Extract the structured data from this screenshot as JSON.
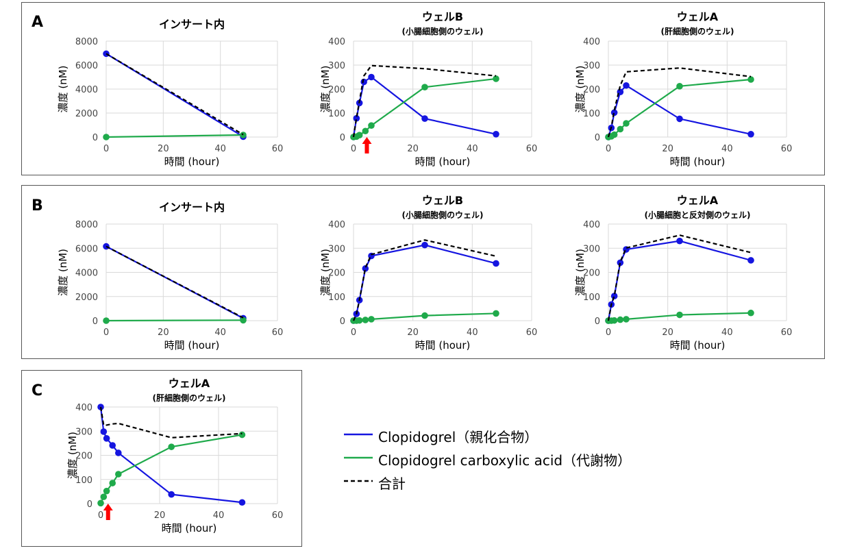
{
  "panels": [
    {
      "letter": "A"
    },
    {
      "letter": "B"
    },
    {
      "letter": "C"
    }
  ],
  "legend": [
    {
      "label": "Clopidogrel（親化合物）",
      "color": "#1515e0",
      "style": "solid"
    },
    {
      "label": "Clopidogrel carboxylic acid（代謝物）",
      "color": "#1faa4b",
      "style": "solid"
    },
    {
      "label": "合計",
      "color": "#000000",
      "style": "dashed"
    }
  ],
  "chart_data": [
    {
      "type": "line",
      "title": "インサート内",
      "subtitle": "",
      "xlabel": "時間 (hour)",
      "ylabel": "濃度 (nM)",
      "xlim": [
        0,
        60
      ],
      "ylim": [
        0,
        8000
      ],
      "xticks": [
        0,
        20,
        40,
        60
      ],
      "yticks": [
        0,
        2000,
        4000,
        6000,
        8000
      ],
      "grid": true,
      "series": [
        {
          "name": "Clopidogrel（親化合物）",
          "color": "#1515e0",
          "x": [
            0,
            48
          ],
          "y": [
            6950,
            30
          ]
        },
        {
          "name": "Clopidogrel carboxylic acid（代謝物）",
          "color": "#1faa4b",
          "x": [
            0,
            48
          ],
          "y": [
            0,
            170
          ]
        },
        {
          "name": "合計",
          "color": "#000000",
          "dashed": true,
          "x": [
            0,
            48
          ],
          "y": [
            6950,
            200
          ]
        }
      ],
      "annotations": []
    },
    {
      "type": "line",
      "title": "ウェルB",
      "subtitle": "(小腸細胞側のウェル)",
      "xlabel": "時間 (hour)",
      "ylabel": "濃度 (nM)",
      "xlim": [
        0,
        60
      ],
      "ylim": [
        0,
        400
      ],
      "xticks": [
        0,
        20,
        40,
        60
      ],
      "yticks": [
        0,
        100,
        200,
        300,
        400
      ],
      "grid": true,
      "series": [
        {
          "name": "Clopidogrel（親化合物）",
          "color": "#1515e0",
          "x": [
            0,
            1,
            2,
            3.5,
            6,
            24,
            48
          ],
          "y": [
            0,
            78,
            142,
            230,
            250,
            77,
            12
          ]
        },
        {
          "name": "Clopidogrel carboxylic acid（代謝物）",
          "color": "#1faa4b",
          "x": [
            0,
            1,
            2,
            4,
            6,
            24,
            48
          ],
          "y": [
            0,
            2,
            8,
            25,
            48,
            208,
            243
          ]
        },
        {
          "name": "合計",
          "color": "#000000",
          "dashed": true,
          "x": [
            0,
            1,
            2,
            3.5,
            6,
            24,
            48
          ],
          "y": [
            0,
            80,
            150,
            255,
            298,
            285,
            255
          ]
        }
      ],
      "annotations": [
        {
          "type": "arrow",
          "x": 4.5,
          "color": "#ff0000"
        }
      ]
    },
    {
      "type": "line",
      "title": "ウェルA",
      "subtitle": "(肝細胞側のウェル)",
      "xlabel": "時間 (hour)",
      "ylabel": "濃度 (nM)",
      "xlim": [
        0,
        60
      ],
      "ylim": [
        0,
        400
      ],
      "xticks": [
        0,
        20,
        40,
        60
      ],
      "yticks": [
        0,
        100,
        200,
        300,
        400
      ],
      "grid": true,
      "series": [
        {
          "name": "Clopidogrel（親化合物）",
          "color": "#1515e0",
          "x": [
            0,
            1,
            2,
            4,
            6,
            24,
            48
          ],
          "y": [
            0,
            38,
            102,
            188,
            215,
            76,
            12
          ]
        },
        {
          "name": "Clopidogrel carboxylic acid（代謝物）",
          "color": "#1faa4b",
          "x": [
            0,
            1,
            2,
            4,
            6,
            24,
            48
          ],
          "y": [
            0,
            3,
            10,
            33,
            57,
            212,
            240
          ]
        },
        {
          "name": "合計",
          "color": "#000000",
          "dashed": true,
          "x": [
            0,
            1,
            2,
            4,
            6,
            24,
            48
          ],
          "y": [
            0,
            42,
            112,
            215,
            272,
            288,
            252
          ]
        }
      ],
      "annotations": []
    },
    {
      "type": "line",
      "title": "インサート内",
      "subtitle": "",
      "xlabel": "時間 (hour)",
      "ylabel": "濃度 (nM)",
      "xlim": [
        0,
        60
      ],
      "ylim": [
        0,
        8000
      ],
      "xticks": [
        0,
        20,
        40,
        60
      ],
      "yticks": [
        0,
        2000,
        4000,
        6000,
        8000
      ],
      "grid": true,
      "series": [
        {
          "name": "Clopidogrel（親化合物）",
          "color": "#1515e0",
          "x": [
            0,
            48
          ],
          "y": [
            6150,
            200
          ]
        },
        {
          "name": "Clopidogrel carboxylic acid（代謝物）",
          "color": "#1faa4b",
          "x": [
            0,
            48
          ],
          "y": [
            0,
            40
          ]
        },
        {
          "name": "合計",
          "color": "#000000",
          "dashed": true,
          "x": [
            0,
            48
          ],
          "y": [
            6150,
            240
          ]
        }
      ],
      "annotations": []
    },
    {
      "type": "line",
      "title": "ウェルB",
      "subtitle": "(小腸細胞側のウェル)",
      "xlabel": "時間 (hour)",
      "ylabel": "濃度 (nM)",
      "xlim": [
        0,
        60
      ],
      "ylim": [
        0,
        400
      ],
      "xticks": [
        0,
        20,
        40,
        60
      ],
      "yticks": [
        0,
        100,
        200,
        300,
        400
      ],
      "grid": true,
      "series": [
        {
          "name": "Clopidogrel（親化合物）",
          "color": "#1515e0",
          "x": [
            0,
            1,
            2,
            4,
            6,
            24,
            48
          ],
          "y": [
            0,
            28,
            85,
            216,
            268,
            313,
            237
          ]
        },
        {
          "name": "Clopidogrel carboxylic acid（代謝物）",
          "color": "#1faa4b",
          "x": [
            0,
            1,
            2,
            4,
            6,
            24,
            48
          ],
          "y": [
            0,
            0,
            1,
            3,
            6,
            21,
            30
          ]
        },
        {
          "name": "合計",
          "color": "#000000",
          "dashed": true,
          "x": [
            0,
            1,
            2,
            4,
            6,
            24,
            48
          ],
          "y": [
            0,
            28,
            86,
            219,
            274,
            334,
            267
          ]
        }
      ],
      "annotations": []
    },
    {
      "type": "line",
      "title": "ウェルA",
      "subtitle": "(小腸細胞と反対側のウェル)",
      "xlabel": "時間 (hour)",
      "ylabel": "濃度 (nM)",
      "xlim": [
        0,
        60
      ],
      "ylim": [
        0,
        400
      ],
      "xticks": [
        0,
        20,
        40,
        60
      ],
      "yticks": [
        0,
        100,
        200,
        300,
        400
      ],
      "grid": true,
      "series": [
        {
          "name": "Clopidogrel（親化合物）",
          "color": "#1515e0",
          "x": [
            0,
            1,
            2,
            4,
            6,
            24,
            48
          ],
          "y": [
            0,
            67,
            102,
            240,
            295,
            330,
            250
          ]
        },
        {
          "name": "Clopidogrel carboxylic acid（代謝物）",
          "color": "#1faa4b",
          "x": [
            0,
            1,
            2,
            4,
            6,
            24,
            48
          ],
          "y": [
            0,
            0,
            1,
            4,
            6,
            24,
            32
          ]
        },
        {
          "name": "合計",
          "color": "#000000",
          "dashed": true,
          "x": [
            0,
            1,
            2,
            4,
            6,
            24,
            48
          ],
          "y": [
            0,
            67,
            103,
            244,
            301,
            354,
            282
          ]
        }
      ],
      "annotations": []
    },
    {
      "type": "line",
      "title": "ウェルA",
      "subtitle": "(肝細胞側のウェル)",
      "xlabel": "時間 (hour)",
      "ylabel": "濃度 (nM)",
      "xlim": [
        0,
        60
      ],
      "ylim": [
        0,
        400
      ],
      "xticks": [
        0,
        20,
        40,
        60
      ],
      "yticks": [
        0,
        100,
        200,
        300,
        400
      ],
      "grid": true,
      "series": [
        {
          "name": "Clopidogrel（親化合物）",
          "color": "#1515e0",
          "x": [
            0,
            1,
            2,
            4,
            6,
            24,
            48
          ],
          "y": [
            400,
            298,
            270,
            241,
            210,
            38,
            5
          ]
        },
        {
          "name": "Clopidogrel carboxylic acid（代謝物）",
          "color": "#1faa4b",
          "x": [
            0,
            1,
            2,
            4,
            6,
            24,
            48
          ],
          "y": [
            2,
            28,
            52,
            85,
            122,
            235,
            285
          ]
        },
        {
          "name": "合計",
          "color": "#000000",
          "dashed": true,
          "x": [
            0,
            1,
            2,
            4,
            6,
            24,
            48
          ],
          "y": [
            400,
            325,
            325,
            330,
            332,
            273,
            290
          ]
        }
      ],
      "annotations": [
        {
          "type": "arrow",
          "x": 2.5,
          "color": "#ff0000"
        }
      ]
    }
  ]
}
